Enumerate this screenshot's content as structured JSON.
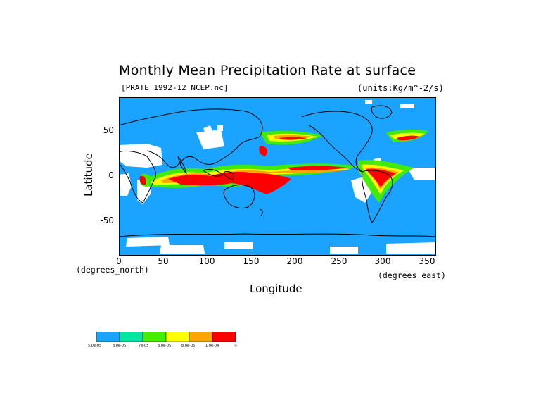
{
  "title": "Monthly Mean Precipitation Rate at surface",
  "dataset_label": "[PRATE_1992-12_NCEP.nc]",
  "units_label": "(units:Kg/m^-2/s)",
  "axes": {
    "xlabel": "Longitude",
    "ylabel": "Latitude",
    "x_unit": "(degrees_east)",
    "y_unit": "(degrees_north)",
    "xlim": [
      0,
      360
    ],
    "ylim": [
      -90,
      90
    ],
    "x_ticks": [
      "0",
      "50",
      "100",
      "150",
      "200",
      "250",
      "300",
      "350"
    ],
    "y_ticks": [
      "50",
      "0",
      "-50"
    ]
  },
  "colorbar": {
    "colors": [
      "#1aa3ff",
      "#00e5a0",
      "#44ee00",
      "#ffff00",
      "#ffa500",
      "#ff0000"
    ],
    "labels": [
      "5.0e-05",
      "8.0e-05",
      "7e-05",
      "8.0e-05",
      "8.0e-05",
      "1.0e-04",
      "∞"
    ]
  },
  "map_colors": {
    "ocean_base": "#1aa3ff",
    "missing": "#ffffff",
    "coast": "#000000"
  }
}
